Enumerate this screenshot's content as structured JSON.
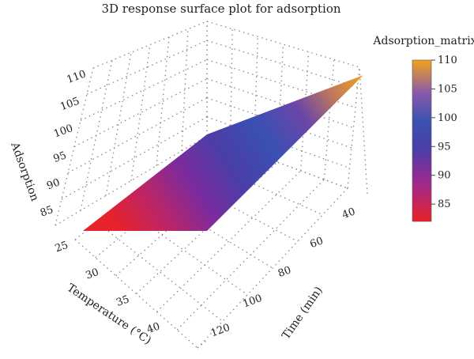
{
  "chart_data": {
    "type": "surface",
    "title": "3D response surface plot for adsorption",
    "x_axis": {
      "label": "Temperature (°C)",
      "ticks": [
        25,
        30,
        35,
        40
      ],
      "range": [
        25,
        45
      ]
    },
    "y_axis": {
      "label": "Time (min)",
      "ticks": [
        40,
        60,
        80,
        100,
        120
      ],
      "range": [
        30,
        130
      ]
    },
    "z_axis": {
      "label": "Adsorption",
      "ticks": [
        85,
        90,
        95,
        100,
        105,
        110
      ],
      "range": [
        82,
        111
      ]
    },
    "surface_corners": [
      {
        "temperature": 25,
        "time": 130,
        "adsorption": 82
      },
      {
        "temperature": 45,
        "time": 130,
        "adsorption": 95
      },
      {
        "temperature": 45,
        "time": 30,
        "adsorption": 110
      },
      {
        "temperature": 25,
        "time": 30,
        "adsorption": 97
      }
    ],
    "colorbar": {
      "title": "Adsorption_matrix",
      "ticks": [
        85,
        90,
        95,
        100,
        105,
        110
      ],
      "range": [
        82,
        110
      ],
      "colors": [
        "#e8222a",
        "#8b2a9e",
        "#4a3fa8",
        "#3b52b0",
        "#8a5aa8",
        "#f0a21c"
      ]
    },
    "grid": true
  }
}
